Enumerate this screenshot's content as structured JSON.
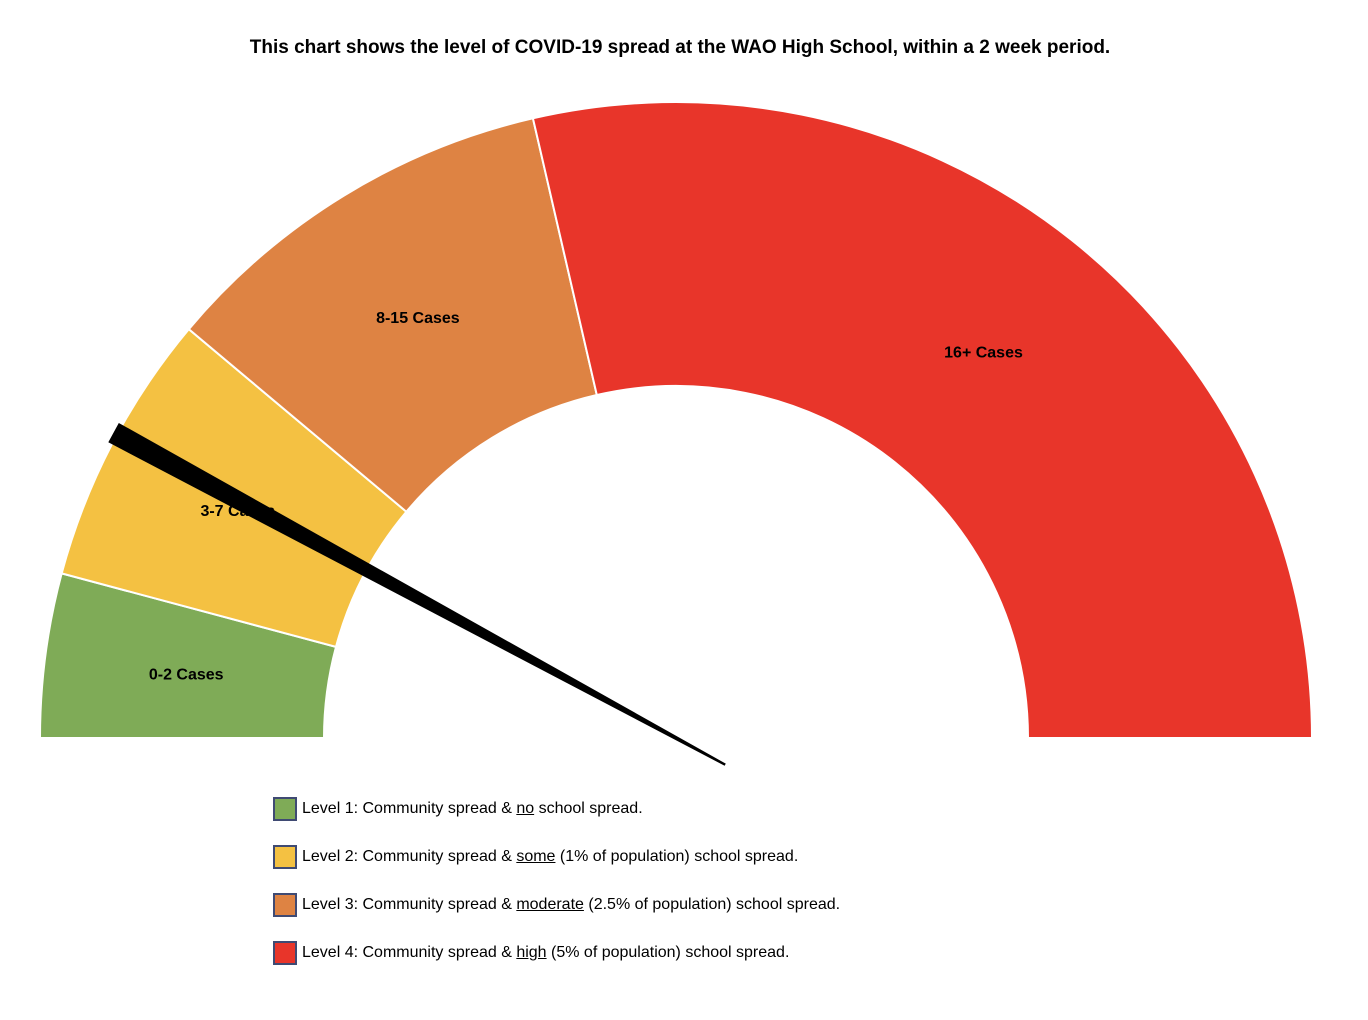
{
  "chart_data": {
    "type": "gauge",
    "title": "This chart shows the level of COVID-19 spread at the WAO High School, within a 2 week period.",
    "segments": [
      {
        "label": "0-2 Cases",
        "value": 15,
        "color": "#7fab57"
      },
      {
        "label": "3-7 Cases",
        "value": 25,
        "color": "#f4c142"
      },
      {
        "label": "8-15 Cases",
        "value": 37,
        "color": "#de8343"
      },
      {
        "label": "16+ Cases",
        "value": 103,
        "color": "#e8352a"
      }
    ],
    "scale_range": [
      0,
      180
    ],
    "needle_value": 28.5,
    "needle_color": "#000000",
    "legend": [
      {
        "prefix": "Level 1:  Community spread & ",
        "emphasis": "no",
        "suffix": " school spread.",
        "color": "#7fab57"
      },
      {
        "prefix": "Level 2: Community spread & ",
        "emphasis": "some",
        "suffix": " (1% of population) school spread.",
        "color": "#f4c142"
      },
      {
        "prefix": "Level 3: Community spread & ",
        "emphasis": "moderate",
        "suffix": " (2.5% of population) school spread.",
        "color": "#de8343"
      },
      {
        "prefix": "Level 4: Community spread & ",
        "emphasis": "high",
        "suffix": " (5% of population) school spread.",
        "color": "#e8352a"
      }
    ]
  }
}
